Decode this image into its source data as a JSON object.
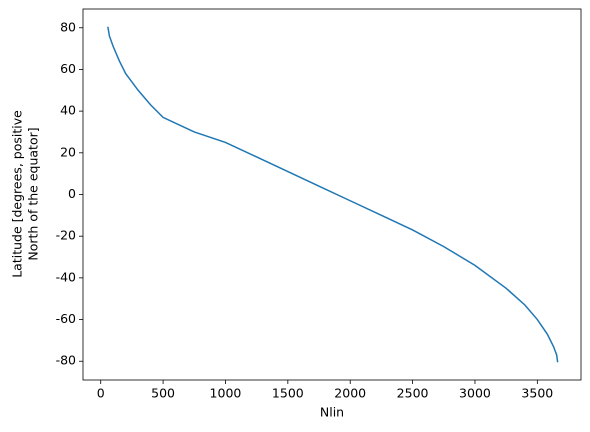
{
  "chart_data": {
    "type": "line",
    "xlabel": "Nlin",
    "ylabel": [
      "Latitude [degrees, positive",
      "North of the equator]"
    ],
    "x": [
      57,
      70,
      100,
      150,
      200,
      300,
      400,
      500,
      750,
      1000,
      1250,
      1500,
      1750,
      2000,
      2250,
      2500,
      2750,
      3000,
      3250,
      3400,
      3500,
      3580,
      3630,
      3655,
      3663
    ],
    "series": [
      {
        "color": "#1f77b4",
        "values": [
          80.5,
          76,
          71,
          64,
          58,
          50,
          43,
          37,
          30,
          25,
          18,
          11,
          4,
          -3,
          -10,
          -17,
          -25,
          -34,
          -45,
          -53,
          -60,
          -67,
          -73,
          -77,
          -80.5
        ]
      }
    ],
    "xlim": [
      -142,
      3850
    ],
    "ylim": [
      -89,
      89
    ],
    "xticks": [
      0,
      500,
      1000,
      1500,
      2000,
      2500,
      3000,
      3500
    ],
    "yticks": [
      -80,
      -60,
      -40,
      -20,
      0,
      20,
      40,
      60,
      80
    ],
    "grid": false
  }
}
